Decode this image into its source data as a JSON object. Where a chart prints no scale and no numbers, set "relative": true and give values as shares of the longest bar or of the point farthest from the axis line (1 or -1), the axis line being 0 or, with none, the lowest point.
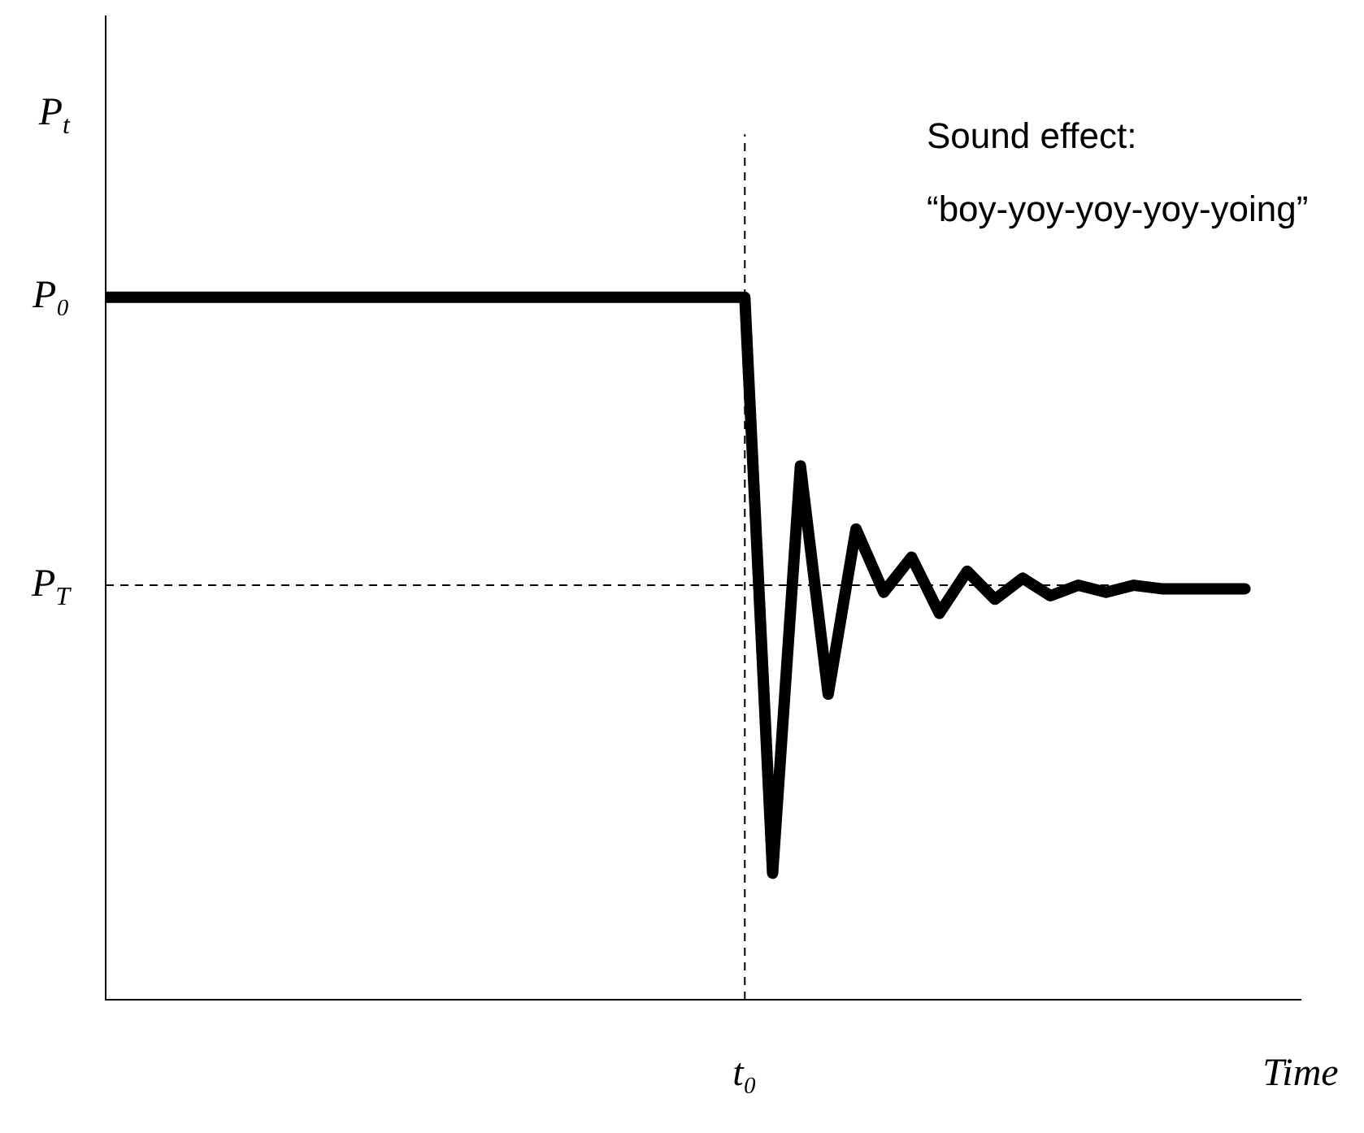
{
  "chart_data": {
    "type": "line",
    "ylabel": "P$_{t}$",
    "categories": [
      null,
      null,
      null,
      null,
      null,
      null,
      null,
      null,
      null,
      null,
      null,
      null,
      null,
      null,
      null,
      null,
      null,
      null,
      null,
      null,
      null,
      null,
      null,
      "t₀",
      null,
      null,
      null,
      null,
      null,
      null,
      null,
      null,
      null,
      null,
      null,
      null,
      null,
      null,
      null,
      null,
      null,
      null,
      null,
      "Time"
    ],
    "series": [
      {
        "color": "#000000",
        "values": [
          1,
          1,
          1,
          1,
          1,
          1,
          1,
          1,
          1,
          1,
          1,
          1,
          1,
          1,
          1,
          1,
          1,
          1,
          1,
          1,
          1,
          1,
          1,
          1,
          0.18,
          0.76,
          0.435,
          0.67,
          0.58,
          0.63,
          0.55,
          0.61,
          0.57,
          0.6,
          0.575,
          0.59,
          0.58,
          0.59,
          0.585,
          0.585,
          0.585,
          0.585,
          null,
          null
        ]
      }
    ],
    "relative": true,
    "grid": false,
    "legend": false,
    "marker": "none",
    "line_style": "solid",
    "ref_lines": [
      {
        "axis": "y",
        "value": 0.59,
        "label": "P$_{T}$",
        "line_style": "dashed"
      },
      {
        "axis": "x",
        "value": "t₀",
        "line_style": "dashed"
      }
    ],
    "annotations": [
      "P₀",
      "Sound effect:",
      "“boy-yoy-yoy-yoy-yoing”"
    ]
  }
}
